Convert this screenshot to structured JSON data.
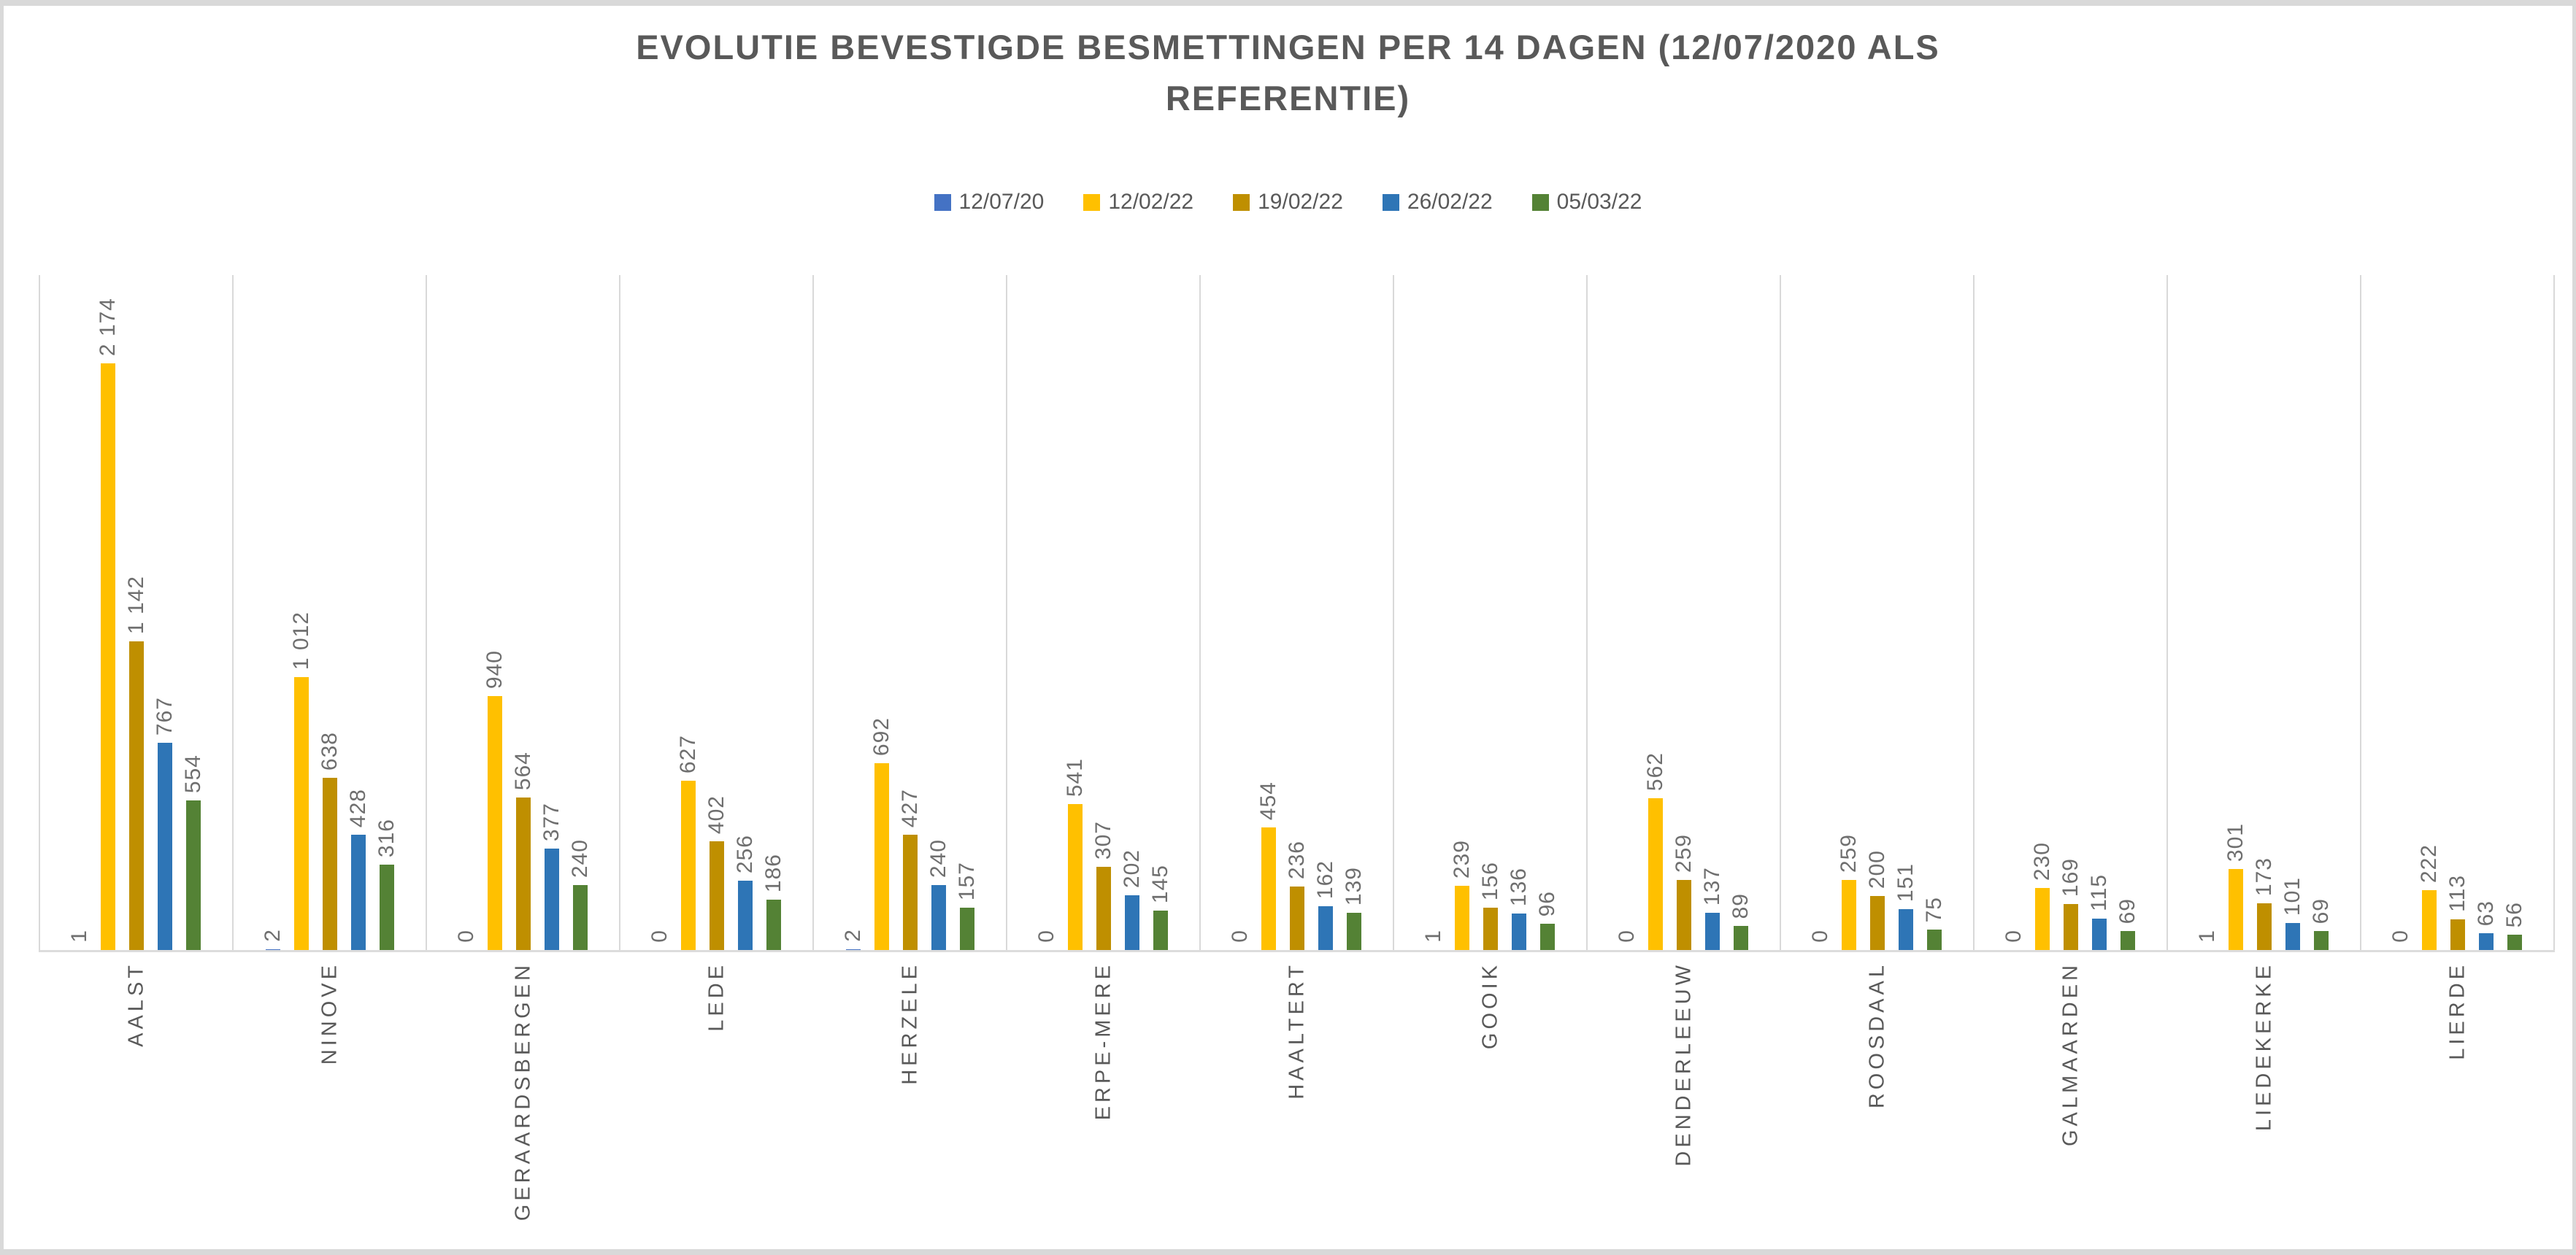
{
  "title": {
    "full": "EVOLUTIE BEVESTIGDE BESMETTINGEN PER 14 DAGEN (12/07/2020 ALS REFERENTIE)",
    "lines": [
      "EVOLUTIE BEVESTIGDE BESMETTINGEN PER 14 DAGEN (12/07/2020 ALS",
      "REFERENTIE)"
    ]
  },
  "colors": {
    "title_text": "#595959",
    "axis_labels": "#595959",
    "data_labels": "#6f6f6f",
    "gridline": "#d9d9d9",
    "frame_border": "#d9d9d9",
    "background": "#ffffff"
  },
  "chart_data": {
    "type": "bar",
    "title": "EVOLUTIE BEVESTIGDE BESMETTINGEN PER 14 DAGEN (12/07/2020 ALS REFERENTIE)",
    "xlabel": "",
    "ylabel": "",
    "ylim": [
      0,
      2500
    ],
    "grid": "vertical category separators only, no horizontal gridlines, no visible y-axis",
    "legend_position": "top-center",
    "data_label_rotation": "rotated 90deg, reading bottom-to-top",
    "category_label_rotation": "rotated 90deg, reading bottom-to-top",
    "categories": [
      "AALST",
      "NINOVE",
      "GERAARDSBERGEN",
      "LEDE",
      "HERZELE",
      "ERPE-MERE",
      "HAALTERT",
      "GOOIK",
      "DENDERLEEUW",
      "ROOSDAAL",
      "GALMAARDEN",
      "LIEDEKERKE",
      "LIERDE"
    ],
    "series": [
      {
        "name": "12/07/20",
        "color": "#4472C4",
        "values": [
          1,
          2,
          0,
          0,
          2,
          0,
          0,
          1,
          0,
          0,
          0,
          1,
          0
        ],
        "display_values": [
          "1",
          "2",
          "0",
          "0",
          "2",
          "0",
          "0",
          "1",
          "0",
          "0",
          "0",
          "1",
          "0"
        ]
      },
      {
        "name": "12/02/22",
        "color": "#FFC000",
        "values": [
          2174,
          1012,
          940,
          627,
          692,
          541,
          454,
          239,
          562,
          259,
          230,
          301,
          222
        ],
        "display_values": [
          "2 174",
          "1 012",
          "940",
          "627",
          "692",
          "541",
          "454",
          "239",
          "562",
          "259",
          "230",
          "301",
          "222"
        ]
      },
      {
        "name": "19/02/22",
        "color": "#BF8F00",
        "values": [
          1142,
          638,
          564,
          402,
          427,
          307,
          236,
          156,
          259,
          200,
          169,
          173,
          113
        ],
        "display_values": [
          "1 142",
          "638",
          "564",
          "402",
          "427",
          "307",
          "236",
          "156",
          "259",
          "200",
          "169",
          "173",
          "113"
        ]
      },
      {
        "name": "26/02/22",
        "color": "#2E75B6",
        "values": [
          767,
          428,
          377,
          256,
          240,
          202,
          162,
          136,
          137,
          151,
          115,
          101,
          63
        ],
        "display_values": [
          "767",
          "428",
          "377",
          "256",
          "240",
          "202",
          "162",
          "136",
          "137",
          "151",
          "115",
          "101",
          "63"
        ]
      },
      {
        "name": "05/03/22",
        "color": "#548235",
        "values": [
          554,
          316,
          240,
          186,
          157,
          145,
          139,
          96,
          89,
          75,
          69,
          69,
          56
        ],
        "display_values": [
          "554",
          "316",
          "240",
          "186",
          "157",
          "145",
          "139",
          "96",
          "89",
          "75",
          "69",
          "69",
          "56"
        ]
      }
    ]
  }
}
